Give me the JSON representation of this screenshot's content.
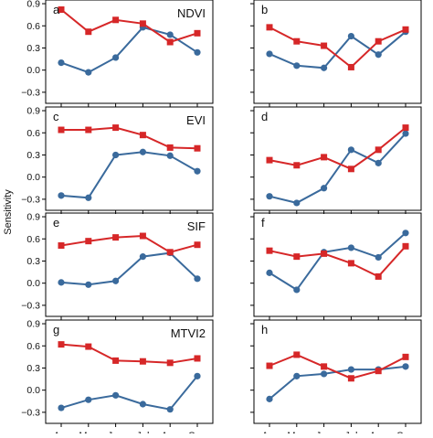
{
  "chart_data": {
    "type": "line",
    "ylabel": "Sensitivity",
    "x": [
      "Apr",
      "May",
      "Jun",
      "Jul",
      "Aug",
      "Sep"
    ],
    "ylim": [
      -0.45,
      0.95
    ],
    "yticks": [
      -0.3,
      0,
      0.3,
      0.6,
      0.9
    ],
    "ytick_labels": [
      "−0.3",
      "0.0",
      "0.3",
      "0.6",
      "0.9"
    ],
    "series_style": [
      {
        "color": "#d62728",
        "marker": "square"
      },
      {
        "color": "#3a6a9c",
        "marker": "circle"
      }
    ],
    "panels": [
      {
        "letter": "a",
        "label": "NDVI",
        "series": [
          {
            "values": [
              0.82,
              0.52,
              0.68,
              0.63,
              0.38,
              0.5
            ]
          },
          {
            "values": [
              0.1,
              -0.03,
              0.17,
              0.58,
              0.48,
              0.24
            ]
          }
        ]
      },
      {
        "letter": "b",
        "label": "",
        "series": [
          {
            "values": [
              0.58,
              0.39,
              0.33,
              0.04,
              0.39,
              0.55
            ]
          },
          {
            "values": [
              0.22,
              0.06,
              0.03,
              0.46,
              0.21,
              0.52
            ]
          }
        ]
      },
      {
        "letter": "c",
        "label": "EVI",
        "series": [
          {
            "values": [
              0.64,
              0.64,
              0.67,
              0.57,
              0.4,
              0.39
            ]
          },
          {
            "values": [
              -0.25,
              -0.28,
              0.3,
              0.34,
              0.29,
              0.08
            ]
          }
        ]
      },
      {
        "letter": "d",
        "label": "",
        "series": [
          {
            "values": [
              0.23,
              0.16,
              0.27,
              0.11,
              0.37,
              0.67
            ]
          },
          {
            "values": [
              -0.26,
              -0.35,
              -0.15,
              0.37,
              0.19,
              0.59
            ]
          }
        ]
      },
      {
        "letter": "e",
        "label": "SIF",
        "series": [
          {
            "values": [
              0.51,
              0.57,
              0.62,
              0.64,
              0.42,
              0.52
            ]
          },
          {
            "values": [
              0.01,
              -0.02,
              0.03,
              0.36,
              0.41,
              0.06
            ]
          }
        ]
      },
      {
        "letter": "f",
        "label": "",
        "series": [
          {
            "values": [
              0.44,
              0.36,
              0.4,
              0.27,
              0.09,
              0.5
            ]
          },
          {
            "values": [
              0.14,
              -0.09,
              0.42,
              0.48,
              0.35,
              0.68
            ]
          }
        ]
      },
      {
        "letter": "g",
        "label": "MTVI2",
        "series": [
          {
            "values": [
              0.62,
              0.59,
              0.4,
              0.39,
              0.37,
              0.43
            ]
          },
          {
            "values": [
              -0.24,
              -0.13,
              -0.07,
              -0.19,
              -0.26,
              0.19
            ]
          }
        ]
      },
      {
        "letter": "h",
        "label": "",
        "series": [
          {
            "values": [
              0.33,
              0.48,
              0.32,
              0.16,
              0.26,
              0.45
            ]
          },
          {
            "values": [
              -0.12,
              0.19,
              0.22,
              0.28,
              0.28,
              0.32
            ]
          }
        ]
      }
    ]
  }
}
